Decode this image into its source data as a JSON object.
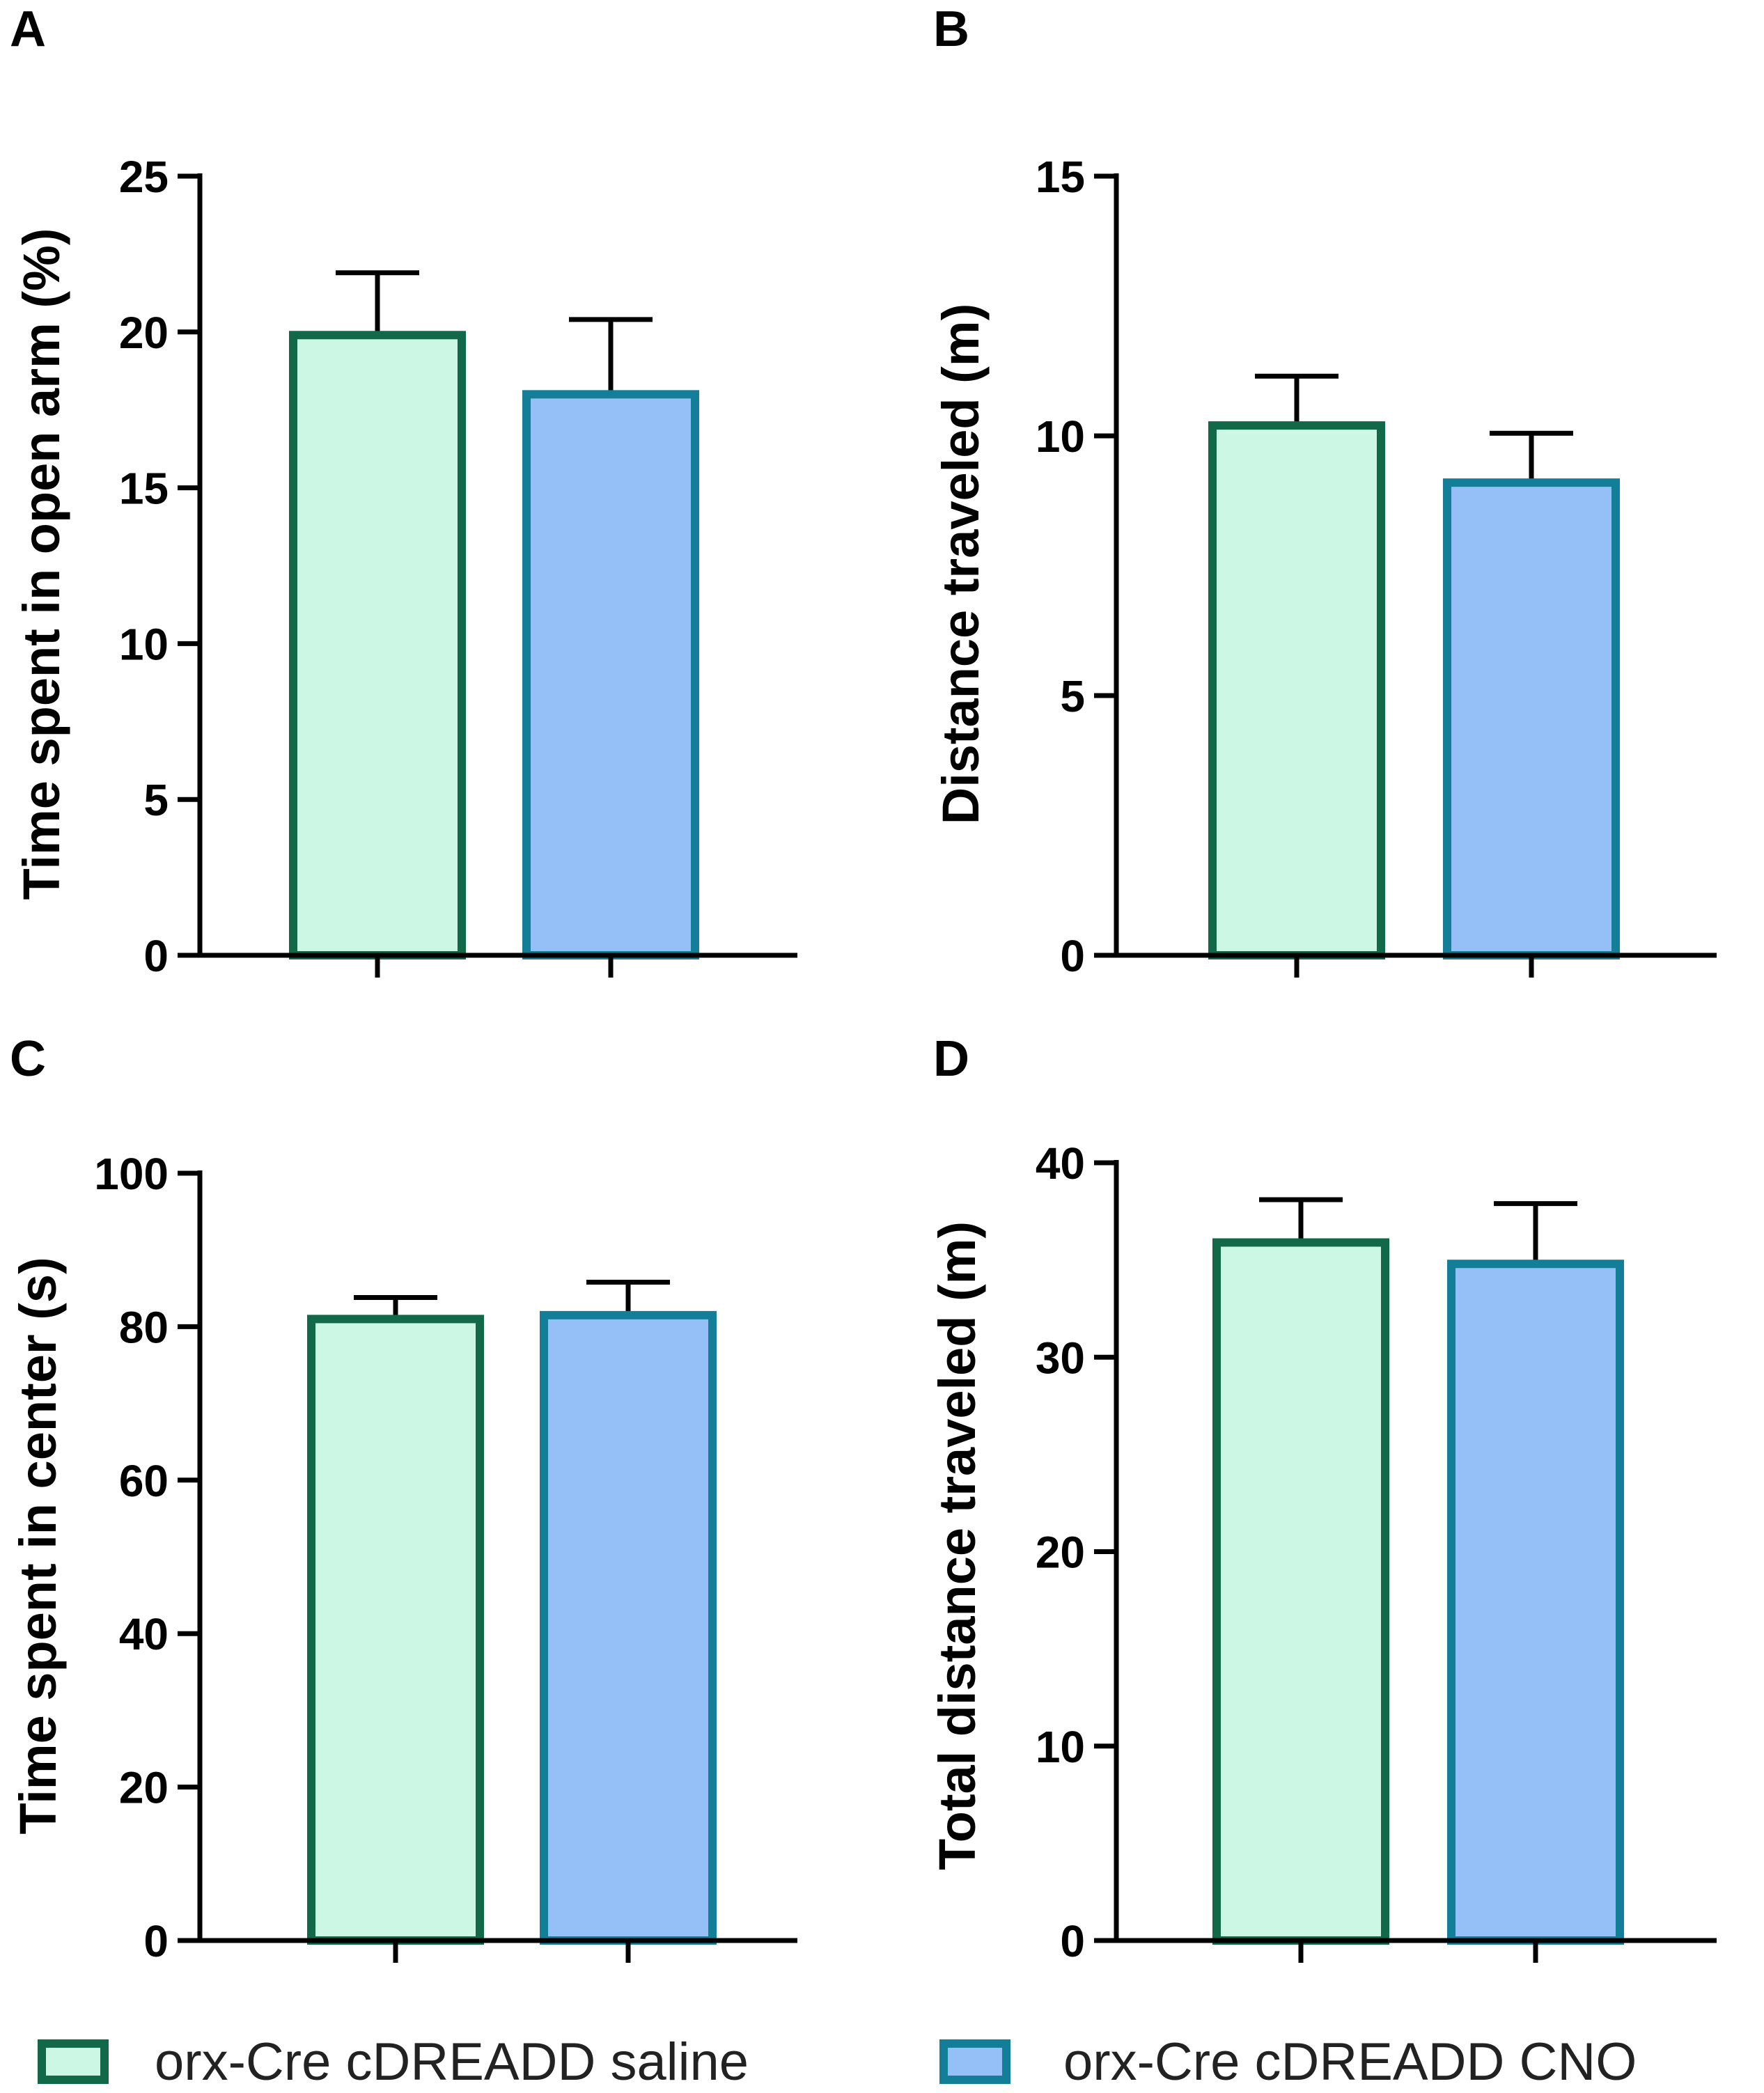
{
  "chart_data": [
    {
      "panel": "A",
      "type": "bar",
      "categories": [
        "orx-Cre cDREADD saline",
        "orx-Cre cDREADD CNO"
      ],
      "values": [
        19.9,
        18.0
      ],
      "errors": [
        2.0,
        2.4
      ],
      "ylabel": "Time spent in open arm (%)",
      "ylim": [
        0,
        25
      ],
      "yticks": [
        0,
        5,
        10,
        15,
        20,
        25
      ],
      "ytick_labels": [
        "0",
        "5",
        "10",
        "15",
        "20",
        "25"
      ]
    },
    {
      "panel": "B",
      "type": "bar",
      "categories": [
        "orx-Cre cDREADD saline",
        "orx-Cre cDREADD CNO"
      ],
      "values": [
        10.2,
        9.1
      ],
      "errors": [
        0.95,
        0.95
      ],
      "ylabel": "Distance traveled (m)",
      "ylim": [
        0,
        15
      ],
      "yticks": [
        0,
        5,
        10,
        15
      ],
      "ytick_labels": [
        "0",
        "5",
        "10",
        "15"
      ]
    },
    {
      "panel": "C",
      "type": "bar",
      "categories": [
        "orx-Cre cDREADD saline",
        "orx-Cre cDREADD CNO"
      ],
      "values": [
        81,
        81.5
      ],
      "errors": [
        2.8,
        4.3
      ],
      "ylabel": "Time spent in center (s)",
      "ylim": [
        0,
        100
      ],
      "yticks": [
        0,
        20,
        40,
        60,
        80,
        100
      ],
      "ytick_labels": [
        "0",
        "20",
        "40",
        "60",
        "80",
        "100"
      ]
    },
    {
      "panel": "D",
      "type": "bar",
      "categories": [
        "orx-Cre cDREADD saline",
        "orx-Cre cDREADD CNO"
      ],
      "values": [
        35.9,
        34.8
      ],
      "errors": [
        2.2,
        3.1
      ],
      "ylabel": "Total distance traveled (m)",
      "ylim": [
        0,
        40
      ],
      "yticks": [
        0,
        10,
        20,
        30,
        40
      ],
      "ytick_labels": [
        "0",
        "10",
        "20",
        "30",
        "40"
      ]
    }
  ],
  "legend": {
    "placement": "bottom",
    "items": [
      {
        "label": "orx-Cre cDREADD saline",
        "fill": "#ccf7e4",
        "edge": "#11694a"
      },
      {
        "label": "orx-Cre cDREADD CNO",
        "fill": "#94bff7",
        "edge": "#137e98"
      }
    ]
  },
  "colors": {
    "saline_fill": "#ccf7e4",
    "saline_edge": "#11694a",
    "cno_fill": "#94bff7",
    "cno_edge": "#137e98",
    "axis": "#000000"
  }
}
